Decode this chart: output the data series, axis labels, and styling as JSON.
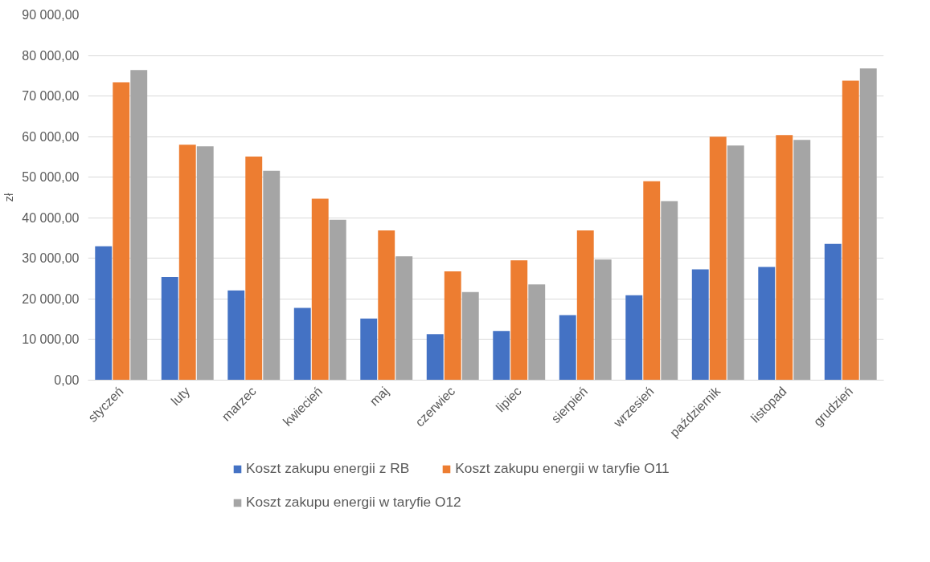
{
  "chart_data": {
    "type": "bar",
    "ylabel": "zł",
    "categories": [
      "styczeń",
      "luty",
      "marzec",
      "kwiecień",
      "maj",
      "czerwiec",
      "lipiec",
      "sierpień",
      "wrzesień",
      "październik",
      "listopad",
      "grudzień"
    ],
    "series": [
      {
        "name": "Koszt zakupu energii z RB",
        "color": "#4472c4",
        "values": [
          33000,
          25400,
          22100,
          17800,
          15200,
          11300,
          12100,
          16000,
          20900,
          27300,
          27900,
          33600
        ]
      },
      {
        "name": "Koszt zakupu energii w taryfie O11",
        "color": "#ed7d31",
        "values": [
          73400,
          58000,
          55100,
          44700,
          36900,
          26800,
          29500,
          36900,
          49000,
          60000,
          60400,
          73800
        ]
      },
      {
        "name": "Koszt zakupu energii w taryfie O12",
        "color": "#a5a5a5",
        "values": [
          76400,
          57600,
          51600,
          39500,
          30500,
          21700,
          23600,
          29700,
          44100,
          57800,
          59200,
          76800
        ]
      }
    ],
    "ylim": [
      0,
      90000
    ],
    "yticks": [
      {
        "value": 0,
        "label": "0,00"
      },
      {
        "value": 10000,
        "label": "10 000,00"
      },
      {
        "value": 20000,
        "label": "20 000,00"
      },
      {
        "value": 30000,
        "label": "30 000,00"
      },
      {
        "value": 40000,
        "label": "40 000,00"
      },
      {
        "value": 50000,
        "label": "50 000,00"
      },
      {
        "value": 60000,
        "label": "60 000,00"
      },
      {
        "value": 70000,
        "label": "70 000,00"
      },
      {
        "value": 80000,
        "label": "80 000,00"
      },
      {
        "value": 90000,
        "label": "90 000,00"
      }
    ],
    "grid": "y",
    "legend": "bottom"
  }
}
